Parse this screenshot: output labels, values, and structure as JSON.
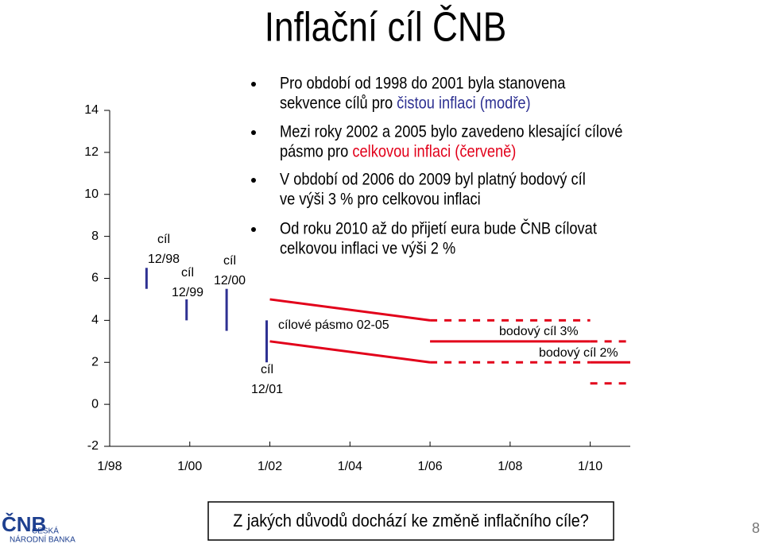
{
  "title": "Inflační cíl ČNB",
  "bullets": [
    [
      [
        {
          "text": "Pro období od 1998 do 2001 byla stanovena"
        }
      ],
      [
        {
          "text": "sekvence cílů pro "
        },
        {
          "text": "čistou inflaci (modře)",
          "color": "#2e3192"
        }
      ]
    ],
    [
      [
        {
          "text": "Mezi roky 2002 a 2005 bylo zavedeno klesající cílové"
        }
      ],
      [
        {
          "text": "pásmo pro "
        },
        {
          "text": "celkovou inflaci (červeně)",
          "color": "#e2001a"
        }
      ]
    ],
    [
      [
        {
          "text": "V období od 2006 do 2009 byl platný bodový cíl"
        }
      ],
      [
        {
          "text": "ve výši 3 % pro celkovou inflaci"
        }
      ]
    ],
    [
      [
        {
          "text": "Od roku 2010 až do přijetí eura bude ČNB cílovat"
        }
      ],
      [
        {
          "text": "celkovou inflaci ve výši 2 %"
        }
      ]
    ]
  ],
  "question": "Z jakých důvodů dochází ke změně inflačního cíle?",
  "page_number": "8",
  "logo": {
    "mark": "ČNB",
    "line1": "ČESKÁ",
    "line2": "NÁRODNÍ BANKA"
  },
  "chart_data": {
    "type": "line",
    "xlim": [
      1998,
      2011
    ],
    "ylim": [
      -2,
      14
    ],
    "xticks": [
      {
        "value": 1998,
        "label": "1/98"
      },
      {
        "value": 2000,
        "label": "1/00"
      },
      {
        "value": 2002,
        "label": "1/02"
      },
      {
        "value": 2004,
        "label": "1/04"
      },
      {
        "value": 2006,
        "label": "1/06"
      },
      {
        "value": 2008,
        "label": "1/08"
      },
      {
        "value": 2010,
        "label": "1/10"
      }
    ],
    "yticks": [
      -2,
      0,
      2,
      4,
      6,
      8,
      10,
      12,
      14
    ],
    "targets": [
      {
        "label": "cíl",
        "date": "12/98",
        "x": 1998.92,
        "low": 5.5,
        "high": 6.5,
        "color": "#2e3192"
      },
      {
        "label": "cíl",
        "date": "12/99",
        "x": 1999.92,
        "low": 4,
        "high": 5,
        "color": "#2e3192"
      },
      {
        "label": "cíl",
        "date": "12/00",
        "x": 2000.92,
        "low": 3.5,
        "high": 5.5,
        "color": "#2e3192"
      },
      {
        "label": "cíl",
        "date": "12/01",
        "x": 2001.92,
        "low": 2,
        "high": 4,
        "color": "#2e3192"
      }
    ],
    "series": [
      {
        "name": "cílové pásmo 02-05",
        "color": "#e2001a",
        "x": [
          2002,
          2006
        ],
        "upper": [
          5,
          4
        ],
        "lower": [
          3,
          2
        ]
      },
      {
        "name": "bodový cíl 3%",
        "color": "#e2001a",
        "x": [
          2006,
          2010
        ],
        "values": [
          3,
          3
        ],
        "upper": [
          4,
          4
        ],
        "lower": [
          2,
          2
        ]
      },
      {
        "name": "bodový cíl 2%",
        "color": "#e2001a",
        "x": [
          2010,
          2011
        ],
        "values": [
          2,
          2
        ],
        "upper": [
          3,
          3
        ],
        "lower": [
          1,
          1
        ]
      }
    ]
  }
}
